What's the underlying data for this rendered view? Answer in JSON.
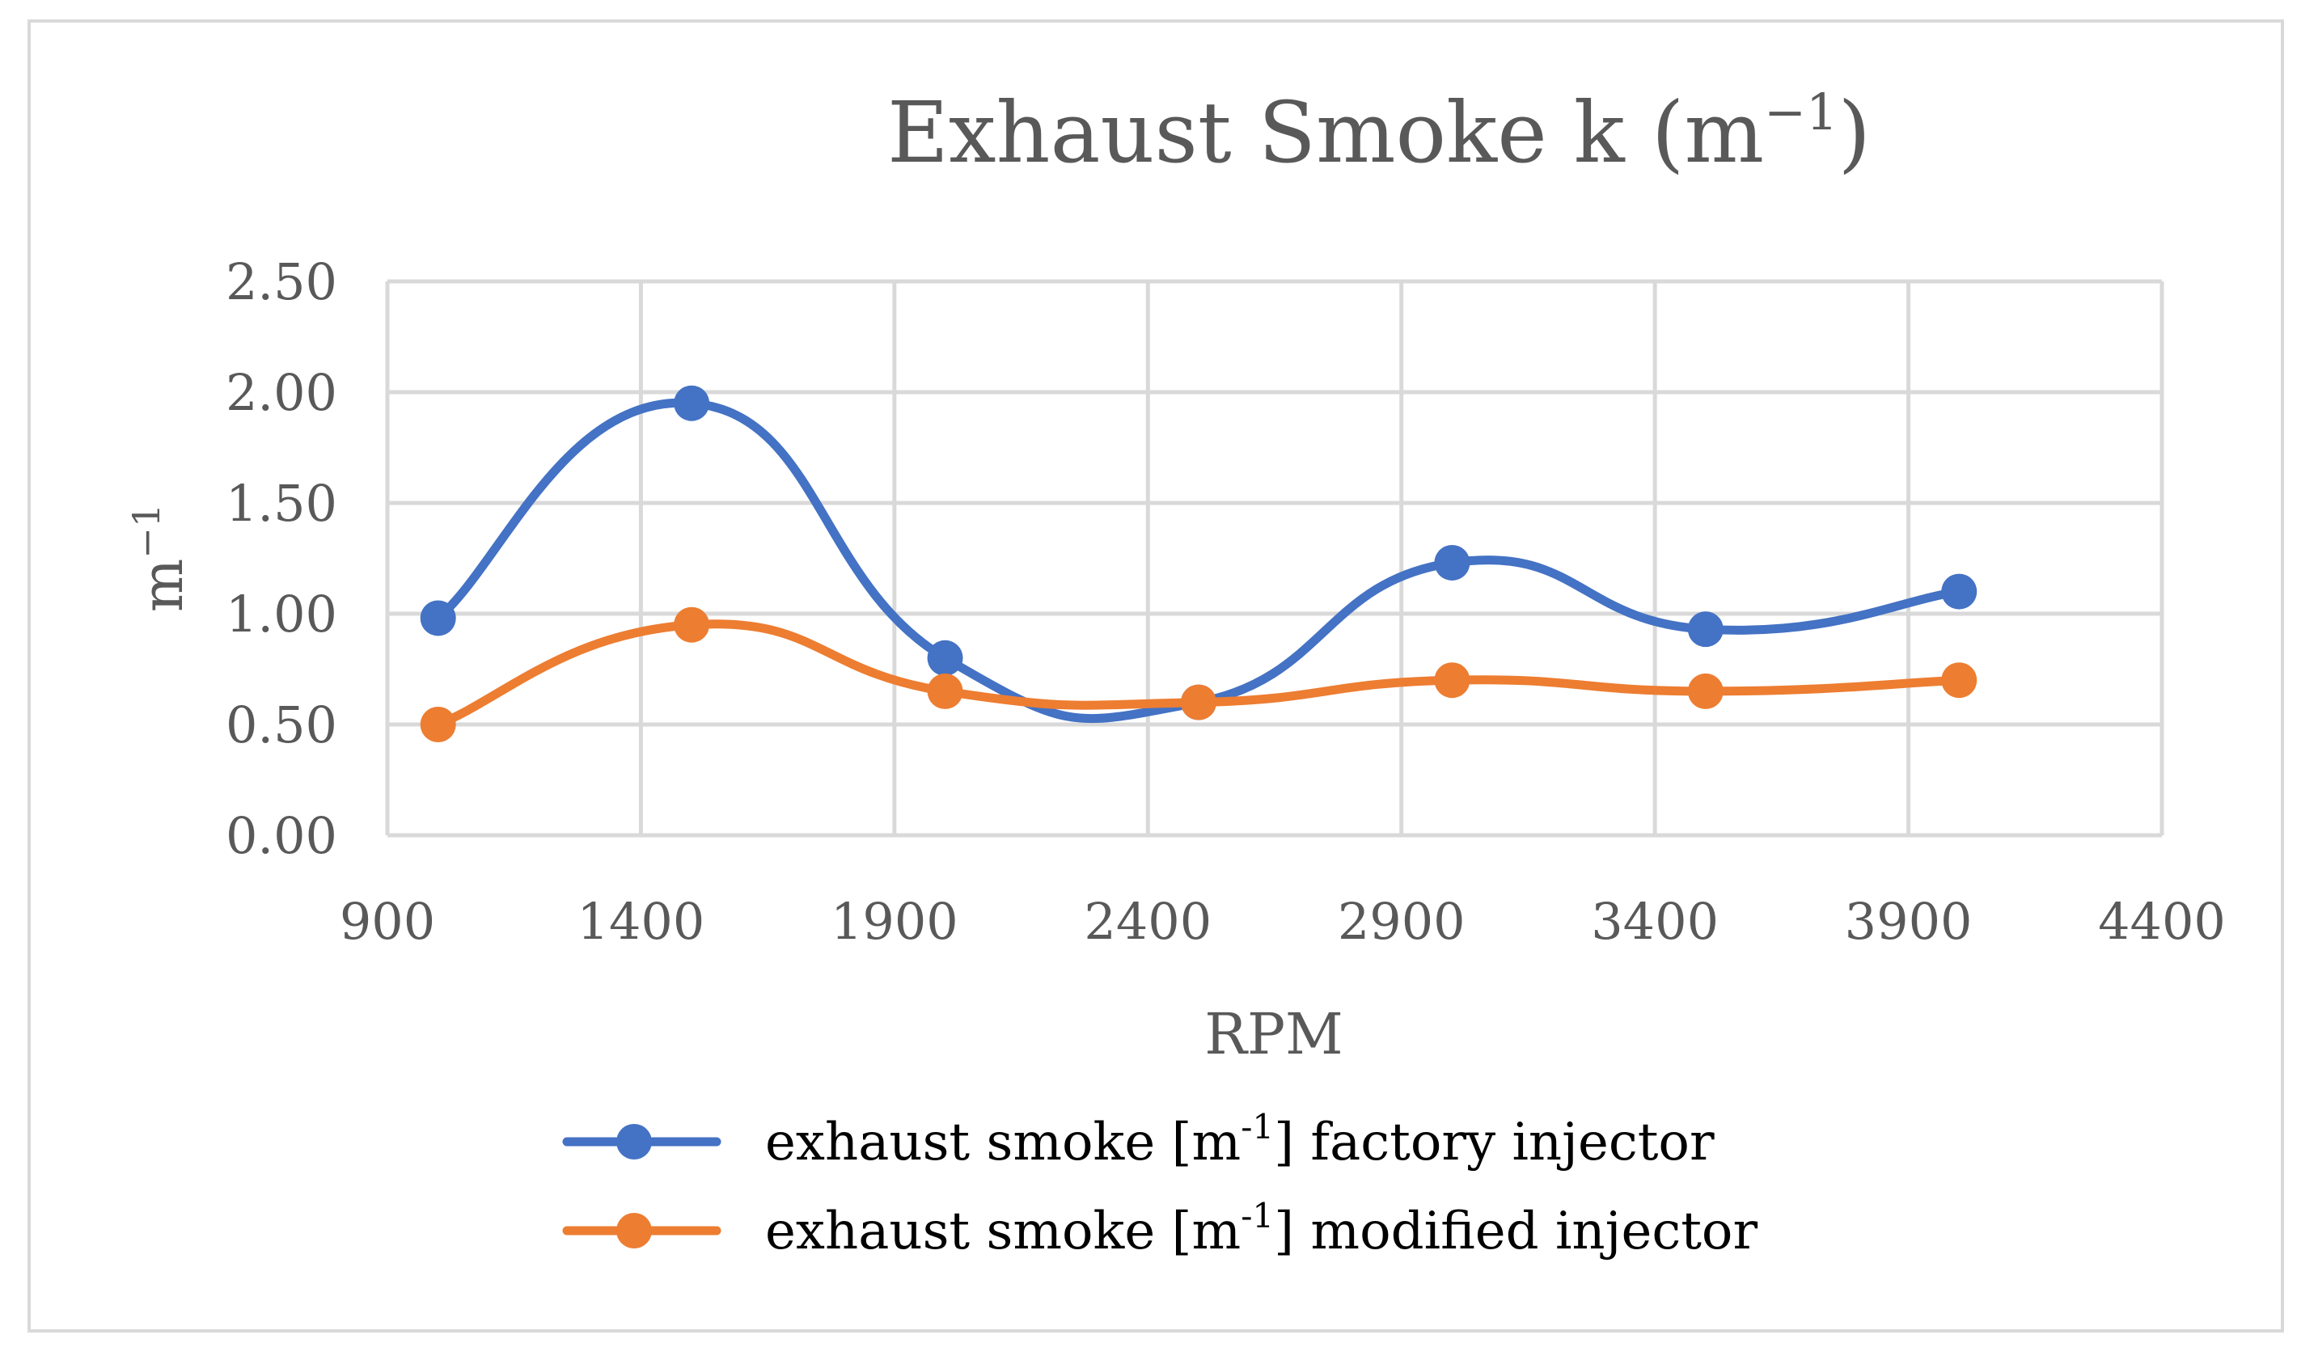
{
  "chart_data": {
    "type": "line",
    "title": "Exhaust Smoke k (m⁻¹)",
    "title_parts": {
      "base": "Exhaust Smoke k (m",
      "superscript": "−1",
      "close": ")"
    },
    "xlabel": "RPM",
    "ylabel": "m−1",
    "ylabel_parts": {
      "base": "m",
      "superscript": "−1"
    },
    "xlim": [
      900,
      4400
    ],
    "ylim": [
      0,
      2.5
    ],
    "x_ticks": [
      900,
      1400,
      1900,
      2400,
      2900,
      3400,
      3900,
      4400
    ],
    "x_tick_labels": [
      "900",
      "1400",
      "1900",
      "2400",
      "2900",
      "3400",
      "3900",
      "4400"
    ],
    "y_ticks": [
      0,
      0.5,
      1.0,
      1.5,
      2.0,
      2.5
    ],
    "y_tick_labels": [
      "0.00",
      "0.50",
      "1.00",
      "1.50",
      "2.00",
      "2.50"
    ],
    "grid": true,
    "smooth": true,
    "legend_position": "bottom",
    "x": [
      1000,
      1500,
      2000,
      2500,
      3000,
      3500,
      4000
    ],
    "series": [
      {
        "name": "exhaust smoke [m-1] factory injector",
        "name_parts": {
          "before": "exhaust smoke [m",
          "superscript": "-1",
          "after": "] factory injector"
        },
        "color": "#4472c4",
        "values": [
          0.98,
          1.95,
          0.8,
          0.6,
          1.23,
          0.93,
          1.1
        ]
      },
      {
        "name": "exhaust smoke [m-1] modified injector",
        "name_parts": {
          "before": "exhaust smoke [m",
          "superscript": "-1",
          "after": "] modified injector"
        },
        "color": "#ed7d31",
        "values": [
          0.5,
          0.95,
          0.65,
          0.6,
          0.7,
          0.65,
          0.7
        ]
      }
    ],
    "colors": {
      "text": "#595959",
      "grid": "#d9d9d9",
      "frame": "#d9d9d9"
    }
  }
}
